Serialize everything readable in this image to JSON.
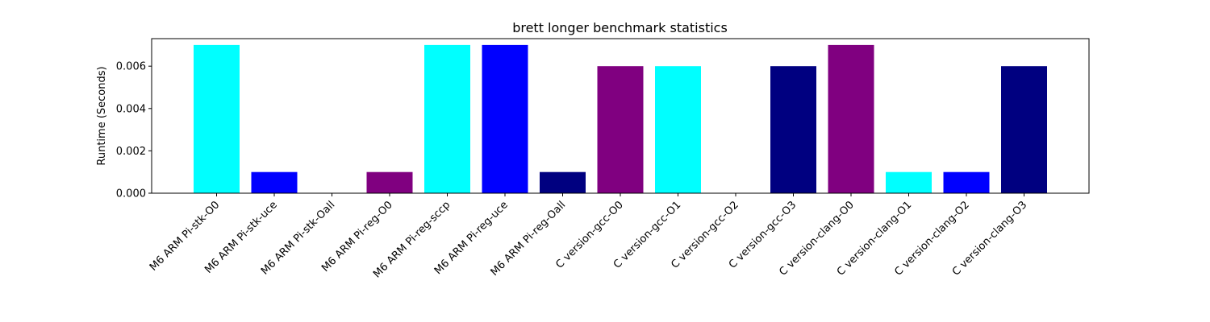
{
  "chart_data": {
    "type": "bar",
    "title": "brett longer benchmark statistics",
    "xlabel": "",
    "ylabel": "Runtime (Seconds)",
    "ylim": [
      0,
      0.0073
    ],
    "yticks": [
      "0.000",
      "0.002",
      "0.004",
      "0.006"
    ],
    "grid": false,
    "legend": "none",
    "categories": [
      "M6 ARM Pi-stk-O0",
      "M6 ARM Pi-stk-uce",
      "M6 ARM Pi-stk-Oall",
      "M6 ARM Pi-reg-O0",
      "M6 ARM Pi-reg-sccp",
      "M6 ARM Pi-reg-uce",
      "M6 ARM Pi-reg-Oall",
      "C version-gcc-O0",
      "C version-gcc-O1",
      "C version-gcc-O2",
      "C version-gcc-O3",
      "C version-clang-O0",
      "C version-clang-O1",
      "C version-clang-O2",
      "C version-clang-O3"
    ],
    "values": [
      0.007,
      0.001,
      0.0,
      0.001,
      0.007,
      0.007,
      0.001,
      0.006,
      0.006,
      0.0,
      0.006,
      0.007,
      0.001,
      0.001,
      0.006
    ],
    "colors": [
      "#00ffff",
      "#0000ff",
      "#000080",
      "#800080",
      "#00ffff",
      "#0000ff",
      "#000080",
      "#800080",
      "#00ffff",
      "#0000ff",
      "#000080",
      "#800080",
      "#00ffff",
      "#0000ff",
      "#000080"
    ]
  }
}
